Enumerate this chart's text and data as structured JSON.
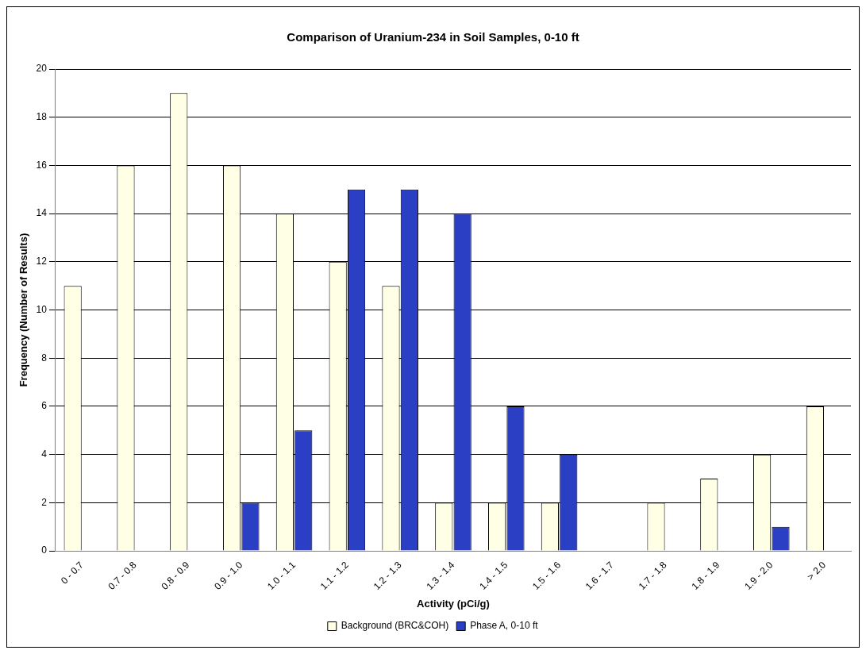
{
  "chart_data": {
    "type": "bar",
    "title": "Comparison of Uranium-234 in Soil Samples, 0-10 ft",
    "xlabel": "Activity (pCi/g)",
    "ylabel": "Frequency (Number of Results)",
    "categories": [
      "0 - 0.7",
      "0.7 - 0.8",
      "0.8 - 0.9",
      "0.9 - 1.0",
      "1.0 - 1.1",
      "1.1 - 1.2",
      "1.2 - 1.3",
      "1.3 - 1.4",
      "1.4 - 1.5",
      "1.5 - 1.6",
      "1.6 - 1.7",
      "1.7 - 1.8",
      "1.8 - 1.9",
      "1.9 - 2.0",
      "> 2.0"
    ],
    "series": [
      {
        "name": "Background (BRC&COH)",
        "color": "#ffffe6",
        "values": [
          11,
          16,
          19,
          16,
          14,
          12,
          11,
          2,
          2,
          2,
          0,
          2,
          3,
          4,
          6
        ]
      },
      {
        "name": "Phase A, 0-10 ft",
        "color": "#2b3fc4",
        "values": [
          0,
          0,
          0,
          2,
          5,
          15,
          15,
          14,
          6,
          4,
          0,
          0,
          0,
          1,
          0
        ]
      }
    ],
    "ylim": [
      0,
      20
    ],
    "yticks": [
      0,
      2,
      4,
      6,
      8,
      10,
      12,
      14,
      16,
      18,
      20
    ],
    "grid": "y",
    "legend": "bottom"
  }
}
